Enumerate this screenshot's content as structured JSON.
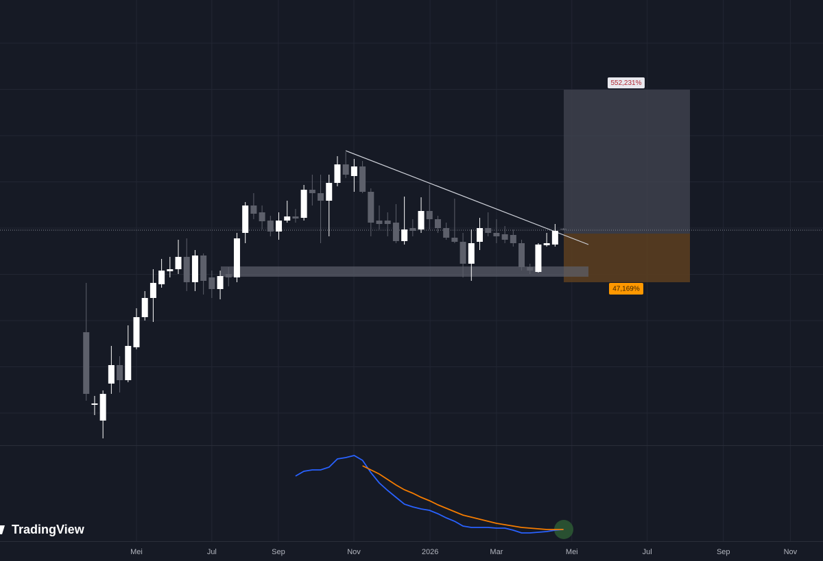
{
  "chart_data": {
    "type": "candlestick",
    "xticks": [
      {
        "value": 6,
        "label": "Mei"
      },
      {
        "value": 15,
        "label": "Jul"
      },
      {
        "value": 22.95,
        "label": "Sep"
      },
      {
        "value": 31.97,
        "label": "Nov"
      },
      {
        "value": 41.07,
        "label": "2026"
      },
      {
        "value": 49,
        "label": "Mar"
      },
      {
        "value": 58,
        "label": "Mei"
      },
      {
        "value": 67,
        "label": "Jul"
      },
      {
        "value": 76.1,
        "label": "Sep"
      },
      {
        "value": 84.1,
        "label": "Nov"
      }
    ],
    "xlim": [
      -10.3,
      88
    ],
    "ylim": [
      0,
      650
    ],
    "up_color": "#ffffff",
    "down_color": "#5d606b",
    "open": [
      165,
      59,
      36,
      90,
      117,
      95,
      143,
      187,
      215,
      235,
      254,
      257,
      275,
      238,
      277,
      245,
      228,
      250,
      245,
      310,
      350,
      340,
      328,
      312,
      328,
      334,
      332,
      373,
      368,
      357,
      383,
      410,
      393,
      407,
      370,
      328,
      328,
      325,
      298,
      317,
      315,
      342,
      330,
      317,
      303,
      297,
      265,
      297,
      317,
      310,
      308,
      307,
      295,
      260,
      253,
      292,
      293,
      316
    ],
    "high": [
      237,
      72,
      80,
      145,
      130,
      175,
      200,
      225,
      257,
      272,
      275,
      300,
      302,
      285,
      280,
      255,
      255,
      260,
      310,
      355,
      368,
      350,
      335,
      340,
      357,
      345,
      380,
      395,
      395,
      395,
      422,
      428,
      418,
      415,
      375,
      350,
      340,
      352,
      363,
      330,
      362,
      380,
      335,
      325,
      360,
      310,
      315,
      332,
      340,
      330,
      320,
      315,
      300,
      265,
      295,
      310,
      323,
      317
    ],
    "low": [
      65,
      44,
      10,
      75,
      77,
      92,
      140,
      182,
      180,
      230,
      245,
      250,
      225,
      225,
      220,
      215,
      213,
      232,
      238,
      295,
      330,
      315,
      305,
      300,
      325,
      325,
      328,
      350,
      295,
      305,
      378,
      390,
      370,
      368,
      305,
      315,
      305,
      295,
      293,
      305,
      310,
      315,
      310,
      300,
      295,
      245,
      240,
      285,
      305,
      295,
      295,
      290,
      255,
      250,
      252,
      290,
      290,
      314
    ],
    "close": [
      75,
      61,
      75,
      117,
      95,
      145,
      187,
      215,
      237,
      255,
      257,
      275,
      238,
      277,
      240,
      228,
      247,
      245,
      302,
      350,
      338,
      327,
      312,
      328,
      334,
      331,
      373,
      368,
      357,
      383,
      410,
      395,
      407,
      370,
      325,
      323,
      323,
      298,
      315,
      313,
      342,
      330,
      317,
      303,
      297,
      265,
      295,
      317,
      310,
      305,
      300,
      295,
      260,
      255,
      293,
      295,
      313,
      315
    ],
    "annotations": {
      "target": "552,231%",
      "stop": "47,169%"
    },
    "indicator": {
      "ylim": [
        0,
        140
      ],
      "series": [
        {
          "color": "#2962ff",
          "values": [
            null,
            null,
            null,
            null,
            null,
            null,
            null,
            null,
            null,
            null,
            null,
            null,
            null,
            null,
            null,
            null,
            null,
            null,
            null,
            null,
            null,
            null,
            null,
            null,
            null,
            95,
            102,
            104,
            104,
            108,
            120,
            122,
            125,
            118,
            100,
            85,
            74,
            64,
            54,
            50,
            47,
            45,
            40,
            34,
            29,
            22,
            20,
            20,
            20,
            19,
            19,
            16,
            12,
            12,
            13,
            14,
            16,
            17
          ]
        },
        {
          "color": "#f57c00",
          "values": [
            null,
            null,
            null,
            null,
            null,
            null,
            null,
            null,
            null,
            null,
            null,
            null,
            null,
            null,
            null,
            null,
            null,
            null,
            null,
            null,
            null,
            null,
            null,
            null,
            null,
            null,
            null,
            null,
            null,
            null,
            null,
            null,
            null,
            110,
            104,
            98,
            90,
            82,
            75,
            70,
            64,
            59,
            53,
            48,
            43,
            38,
            35,
            32,
            29,
            26,
            24,
            22,
            20,
            19,
            18,
            17,
            17,
            17
          ]
        }
      ]
    }
  },
  "brand": "TradingView"
}
